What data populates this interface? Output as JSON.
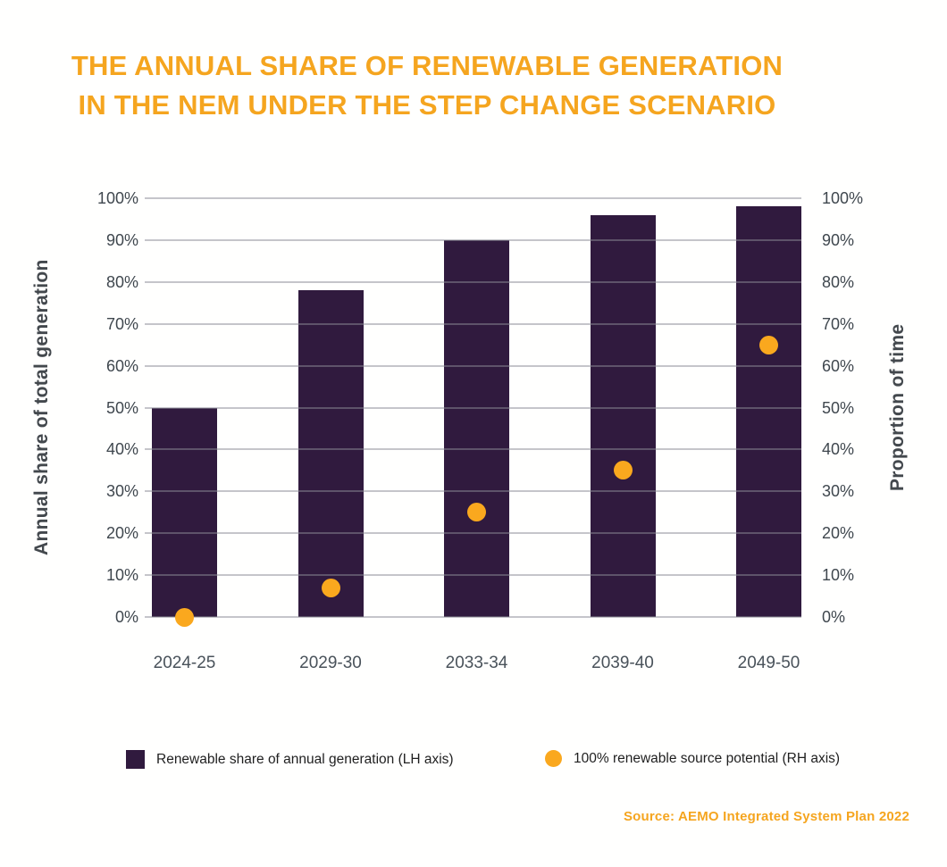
{
  "colors": {
    "accent_orange": "#F5A51F",
    "bar_purple": "#301A3E",
    "dot_orange": "#FAA81E",
    "axis_text": "#3F474E",
    "background": "#FFFFFE"
  },
  "chart_data": {
    "type": "bar",
    "title_line1": "THE ANNUAL SHARE OF RENEWABLE GENERATION",
    "title_line2": "IN THE NEM UNDER THE STEP CHANGE SCENARIO",
    "categories": [
      "2024-25",
      "2029-30",
      "2033-34",
      "2039-40",
      "2049-50"
    ],
    "series": [
      {
        "name": "Renewable share of annual generation (LH axis)",
        "type": "bar",
        "axis": "left",
        "color": "#301A3E",
        "values": [
          50,
          78,
          90,
          96,
          98
        ]
      },
      {
        "name": "100% renewable source potential (RH axis)",
        "type": "scatter",
        "axis": "right",
        "color": "#FAA81E",
        "values": [
          0,
          7,
          25,
          35,
          65
        ]
      }
    ],
    "ylabel_left": "Annual share of total generation",
    "ylabel_right": "Proportion of time",
    "ylim": [
      0,
      100
    ],
    "yticks": [
      0,
      10,
      20,
      30,
      40,
      50,
      60,
      70,
      80,
      90,
      100
    ],
    "tick_suffix": "%",
    "grid": "horizontal",
    "legend_position": "bottom",
    "source": "Source: AEMO Integrated System Plan 2022"
  }
}
